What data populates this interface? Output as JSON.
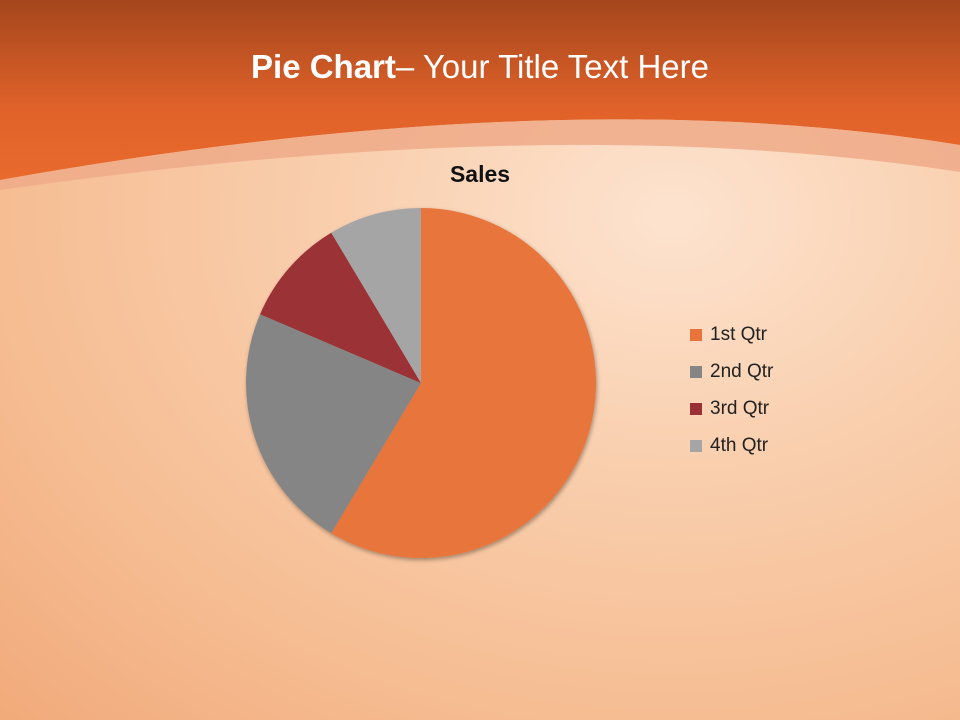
{
  "slide": {
    "title_bold": "Pie Chart",
    "title_rest": "– Your Title Text Here"
  },
  "colors": {
    "header": "#e0622a",
    "q1": "#e8743b",
    "q2": "#858585",
    "q3": "#9b3034",
    "q4": "#a5a5a5"
  },
  "chart_data": {
    "type": "pie",
    "title": "Sales",
    "categories": [
      "1st Qtr",
      "2nd Qtr",
      "3rd Qtr",
      "4th Qtr"
    ],
    "values": [
      8.2,
      3.2,
      1.4,
      1.2
    ],
    "legend_position": "right",
    "start_angle": "top, clockwise"
  }
}
